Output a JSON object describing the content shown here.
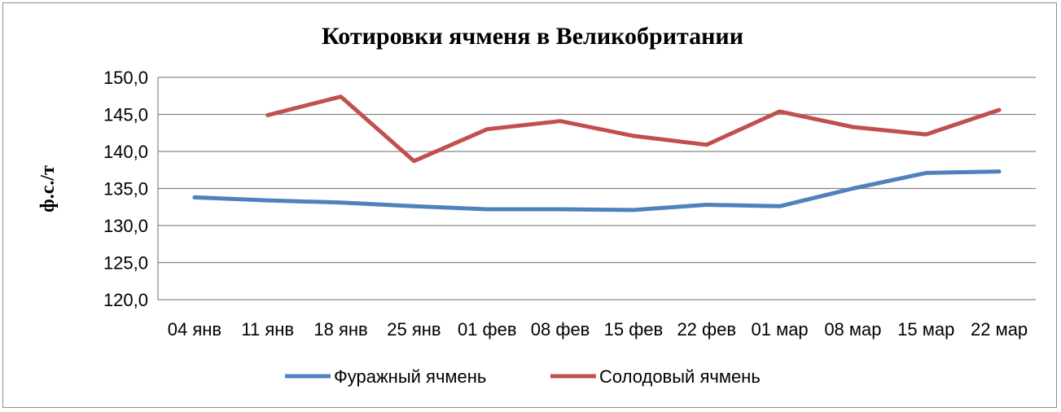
{
  "chart_data": {
    "type": "line",
    "title": "Котировки ячменя в Великобритании",
    "xlabel": "",
    "ylabel": "ф.с./т",
    "categories": [
      "04 янв",
      "11 янв",
      "18 янв",
      "25 янв",
      "01 фев",
      "08 фев",
      "15 фев",
      "22 фев",
      "01 мар",
      "08 мар",
      "15 мар",
      "22 мар"
    ],
    "y_ticks": [
      "120,0",
      "125,0",
      "130,0",
      "135,0",
      "140,0",
      "145,0",
      "150,0"
    ],
    "ylim": [
      120,
      150
    ],
    "grid": true,
    "legend": "bottom",
    "series": [
      {
        "name": "Фуражный ячмень",
        "color": "#4F81BD",
        "values": [
          133.8,
          133.4,
          133.1,
          132.6,
          132.2,
          132.2,
          132.1,
          132.8,
          132.6,
          135.0,
          137.1,
          137.3
        ]
      },
      {
        "name": "Солодовый ячмень",
        "color": "#C0504D",
        "values": [
          null,
          144.9,
          147.4,
          138.7,
          143.0,
          144.1,
          142.1,
          140.9,
          145.4,
          143.3,
          142.3,
          145.6
        ]
      }
    ]
  }
}
